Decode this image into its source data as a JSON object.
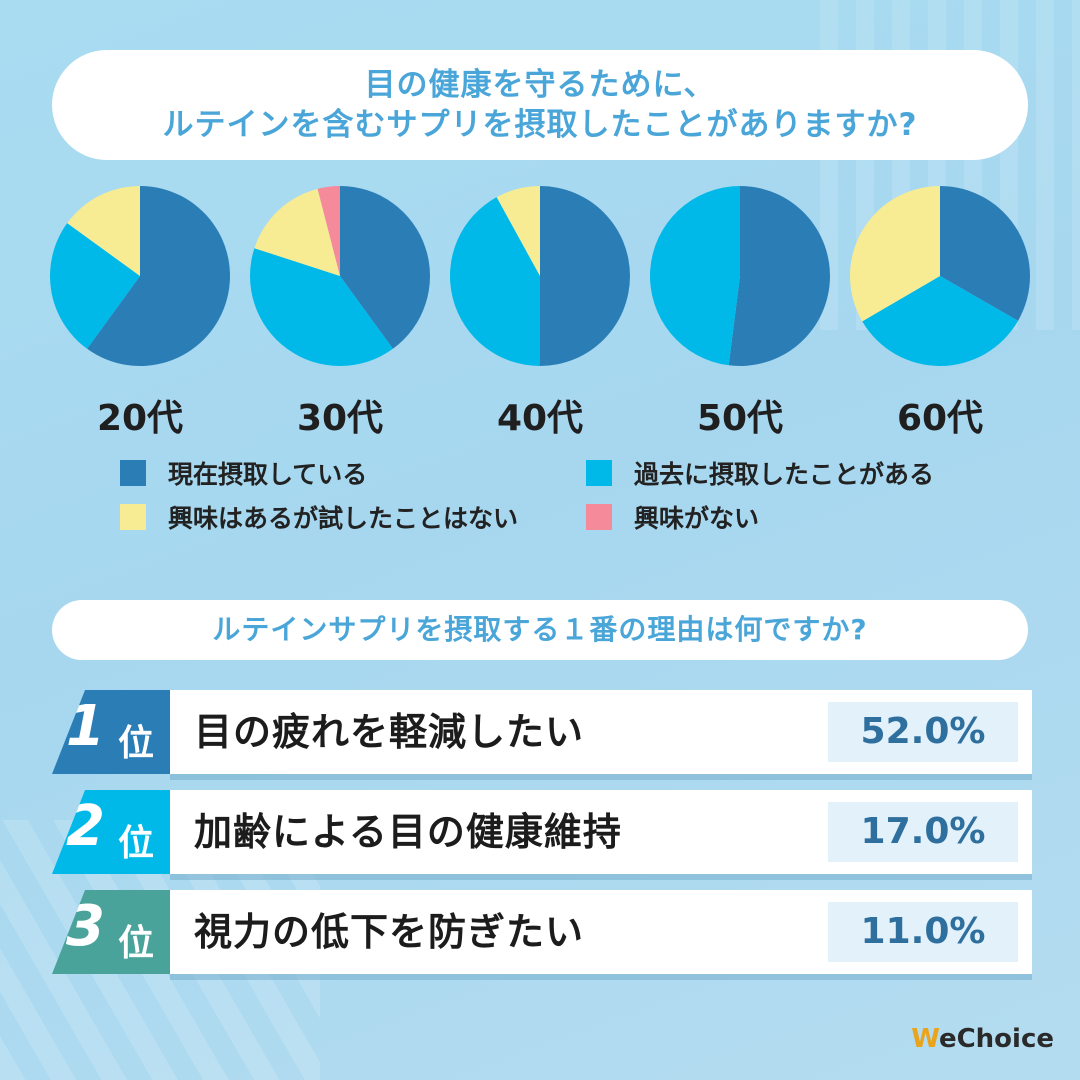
{
  "question1": {
    "line1": "目の健康を守るために、",
    "line2": "ルテインを含むサプリを摂取したことがありますか?"
  },
  "question2": "ルテインサプリを摂取する１番の理由は何ですか?",
  "colors": {
    "current": "#2b7db6",
    "past": "#00b9e8",
    "interested": "#f7ec94",
    "not_interested": "#f58a9a"
  },
  "chart_data": [
    {
      "type": "pie",
      "label": "20代",
      "slices": [
        {
          "name": "現在摂取している",
          "value": 60
        },
        {
          "name": "過去に摂取したことがある",
          "value": 25
        },
        {
          "name": "興味はあるが試したことはない",
          "value": 15
        },
        {
          "name": "興味がない",
          "value": 0
        }
      ]
    },
    {
      "type": "pie",
      "label": "30代",
      "slices": [
        {
          "name": "現在摂取している",
          "value": 40
        },
        {
          "name": "過去に摂取したことがある",
          "value": 40
        },
        {
          "name": "興味はあるが試したことはない",
          "value": 16
        },
        {
          "name": "興味がない",
          "value": 4
        }
      ]
    },
    {
      "type": "pie",
      "label": "40代",
      "slices": [
        {
          "name": "現在摂取している",
          "value": 50
        },
        {
          "name": "過去に摂取したことがある",
          "value": 42
        },
        {
          "name": "興味はあるが試したことはない",
          "value": 8
        },
        {
          "name": "興味がない",
          "value": 0
        }
      ]
    },
    {
      "type": "pie",
      "label": "50代",
      "slices": [
        {
          "name": "現在摂取している",
          "value": 52
        },
        {
          "name": "過去に摂取したことがある",
          "value": 48
        },
        {
          "name": "興味はあるが試したことはない",
          "value": 0
        },
        {
          "name": "興味がない",
          "value": 0
        }
      ]
    },
    {
      "type": "pie",
      "label": "60代",
      "slices": [
        {
          "name": "現在摂取している",
          "value": 33.3
        },
        {
          "name": "過去に摂取したことがある",
          "value": 33.3
        },
        {
          "name": "興味はあるが試したことはない",
          "value": 33.4
        },
        {
          "name": "興味がない",
          "value": 0
        }
      ]
    }
  ],
  "legend": [
    {
      "label": "現在摂取している",
      "color": "#2b7db6"
    },
    {
      "label": "過去に摂取したことがある",
      "color": "#00b9e8"
    },
    {
      "label": "興味はあるが試したことはない",
      "color": "#f7ec94"
    },
    {
      "label": "興味がない",
      "color": "#f58a9a"
    }
  ],
  "rankings": [
    {
      "num": "1",
      "suffix": "位",
      "text": "目の疲れを軽減したい",
      "pct": "52.0%",
      "color": "#2b7db6"
    },
    {
      "num": "2",
      "suffix": "位",
      "text": "加齢による目の健康維持",
      "pct": "17.0%",
      "color": "#00b9e8"
    },
    {
      "num": "3",
      "suffix": "位",
      "text": "視力の低下を防ぎたい",
      "pct": "11.0%",
      "color": "#4aa39b"
    }
  ],
  "logo": {
    "w": "W",
    "rest": "eChoice"
  }
}
